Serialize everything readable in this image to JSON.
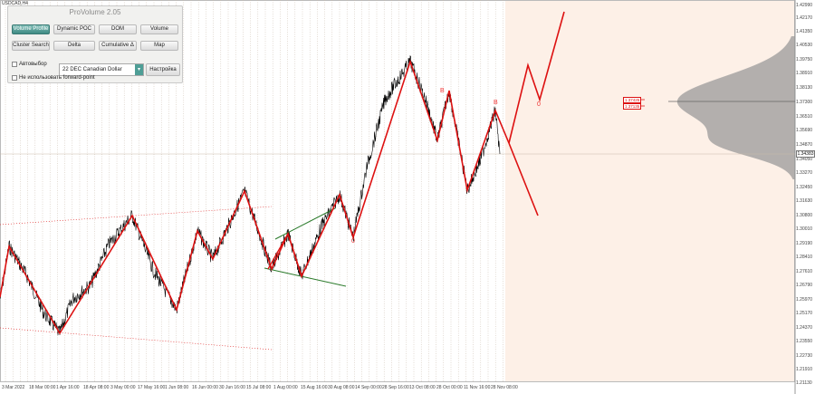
{
  "chart": {
    "symbol": "USDCAD,H4",
    "current_price": "1.34383",
    "colors": {
      "background": "#ffffff",
      "forecast_zone": "#fdf0e7",
      "price": "#000000",
      "zigzag": "#dd1111",
      "channel": "#2a7a2a",
      "profile": "#9a9a9a",
      "grid": "#c8b8a8"
    },
    "x_labels": [
      "3 Mar 2022",
      "18 Mar 00:00",
      "1 Apr 16:00",
      "18 Apr 08:00",
      "3 May 00:00",
      "17 May 16:00",
      "1 Jun 08:00",
      "16 Jun 00:00",
      "30 Jun 16:00",
      "15 Jul 08:00",
      "1 Aug 00:00",
      "15 Aug 16:00",
      "30 Aug 08:00",
      "14 Sep 00:00",
      "28 Sep 16:00",
      "13 Oct 08:00",
      "28 Oct 00:00",
      "11 Nov 16:00",
      "28 Nov 08:00"
    ],
    "y_labels": [
      "1.42990",
      "1.42170",
      "1.41350",
      "1.40530",
      "1.39750",
      "1.38910",
      "1.38130",
      "1.37300",
      "1.36510",
      "1.35690",
      "1.34870",
      "1.34050",
      "1.33270",
      "1.32450",
      "1.31630",
      "1.30800",
      "1.30010",
      "1.29190",
      "1.28410",
      "1.27610",
      "1.26790",
      "1.25970",
      "1.25170",
      "1.24370",
      "1.23550",
      "1.22730",
      "1.21910",
      "1.21130"
    ],
    "zigzag_tags": [
      "1.37425",
      "1.37135"
    ],
    "wave_labels": [
      "B",
      "0",
      "B",
      "0"
    ]
  },
  "panel": {
    "title": "ProVolume 2.05",
    "buttons": [
      {
        "label": "Volume Profile",
        "active": true
      },
      {
        "label": "Dynamic POC",
        "active": false
      },
      {
        "label": "DOM",
        "active": false
      },
      {
        "label": "Volume",
        "active": false
      },
      {
        "label": "Cluster Search",
        "active": false
      },
      {
        "label": "Delta",
        "active": false
      },
      {
        "label": "Cumulative Δ",
        "active": false
      },
      {
        "label": "Map",
        "active": false
      }
    ],
    "auto_select_label": "Автовыбор",
    "instrument": "22 DEC Canadian Dollar",
    "settings_label": "Настройка",
    "forward_point_label": "Не использовать forward-point"
  }
}
